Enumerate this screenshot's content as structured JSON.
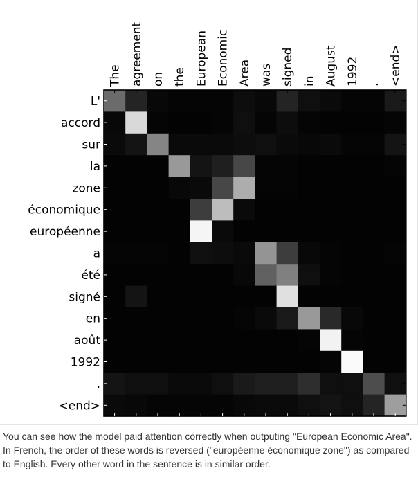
{
  "chart_data": {
    "type": "heatmap",
    "x_tokens": [
      "The",
      "agreement",
      "on",
      "the",
      "European",
      "Economic",
      "Area",
      "was",
      "signed",
      "in",
      "August",
      "1992",
      ".",
      "<end>"
    ],
    "y_tokens": [
      "L'",
      "accord",
      "sur",
      "la",
      "zone",
      "économique",
      "européenne",
      "a",
      "été",
      "signé",
      "en",
      "août",
      "1992",
      ".",
      "<end>"
    ],
    "value_range": [
      0,
      1
    ],
    "colormap": "grayscale",
    "values": [
      [
        0.42,
        0.14,
        0.03,
        0.02,
        0.02,
        0.02,
        0.05,
        0.03,
        0.14,
        0.06,
        0.04,
        0.02,
        0.02,
        0.1
      ],
      [
        0.03,
        0.85,
        0.02,
        0.01,
        0.01,
        0.02,
        0.06,
        0.02,
        0.05,
        0.02,
        0.01,
        0.01,
        0.01,
        0.02
      ],
      [
        0.04,
        0.08,
        0.52,
        0.04,
        0.04,
        0.04,
        0.05,
        0.06,
        0.04,
        0.03,
        0.04,
        0.02,
        0.02,
        0.08
      ],
      [
        0.01,
        0.01,
        0.01,
        0.6,
        0.08,
        0.12,
        0.28,
        0.02,
        0.02,
        0.01,
        0.01,
        0.01,
        0.01,
        0.02
      ],
      [
        0.01,
        0.01,
        0.01,
        0.03,
        0.04,
        0.28,
        0.68,
        0.02,
        0.02,
        0.01,
        0.01,
        0.01,
        0.01,
        0.01
      ],
      [
        0.01,
        0.01,
        0.01,
        0.01,
        0.24,
        0.74,
        0.04,
        0.01,
        0.01,
        0.01,
        0.01,
        0.01,
        0.01,
        0.01
      ],
      [
        0.01,
        0.01,
        0.01,
        0.01,
        0.96,
        0.04,
        0.01,
        0.01,
        0.01,
        0.01,
        0.01,
        0.01,
        0.01,
        0.01
      ],
      [
        0.02,
        0.02,
        0.02,
        0.01,
        0.06,
        0.05,
        0.04,
        0.58,
        0.24,
        0.03,
        0.02,
        0.01,
        0.01,
        0.02
      ],
      [
        0.01,
        0.01,
        0.01,
        0.01,
        0.01,
        0.01,
        0.03,
        0.38,
        0.5,
        0.06,
        0.02,
        0.01,
        0.01,
        0.01
      ],
      [
        0.01,
        0.08,
        0.01,
        0.01,
        0.01,
        0.01,
        0.01,
        0.01,
        0.88,
        0.01,
        0.01,
        0.01,
        0.01,
        0.01
      ],
      [
        0.01,
        0.01,
        0.01,
        0.01,
        0.01,
        0.01,
        0.02,
        0.04,
        0.1,
        0.6,
        0.16,
        0.03,
        0.01,
        0.01
      ],
      [
        0.01,
        0.01,
        0.01,
        0.01,
        0.01,
        0.01,
        0.01,
        0.01,
        0.01,
        0.02,
        0.95,
        0.02,
        0.01,
        0.01
      ],
      [
        0.01,
        0.01,
        0.01,
        0.01,
        0.01,
        0.01,
        0.01,
        0.01,
        0.01,
        0.01,
        0.02,
        0.98,
        0.01,
        0.01
      ],
      [
        0.08,
        0.06,
        0.06,
        0.04,
        0.04,
        0.06,
        0.1,
        0.12,
        0.12,
        0.18,
        0.06,
        0.06,
        0.3,
        0.06
      ],
      [
        0.04,
        0.03,
        0.02,
        0.02,
        0.02,
        0.02,
        0.03,
        0.04,
        0.04,
        0.06,
        0.08,
        0.06,
        0.14,
        0.62
      ]
    ]
  },
  "caption": "You can see how the model paid attention correctly when outputing \"European Economic Area\". In French, the order of these words is reversed (\"européenne économique zone\") as compared to English. Every other word in the sentence is in similar order."
}
